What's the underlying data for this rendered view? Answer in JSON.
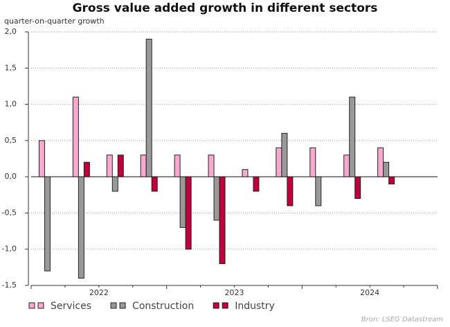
{
  "chart_data": {
    "type": "bar",
    "title": "Gross value added growth in different sectors",
    "y_label": "quarter-on-quarter growth",
    "source": "Bron: LSEG Datastream",
    "categories": [
      null,
      null,
      null,
      null,
      null,
      null,
      null,
      null,
      null,
      null,
      null
    ],
    "year_labels": [
      "2022",
      "2023",
      "2024"
    ],
    "series": [
      {
        "name": "Services",
        "color": "#f9a8cf",
        "values": [
          0.5,
          1.1,
          0.3,
          0.3,
          0.3,
          0.3,
          0.1,
          0.4,
          0.4,
          0.3,
          0.4
        ]
      },
      {
        "name": "Construction",
        "color": "#999999",
        "values": [
          -1.3,
          -1.4,
          -0.2,
          1.9,
          -0.7,
          -0.6,
          0.0,
          0.6,
          -0.4,
          1.1,
          0.2
        ]
      },
      {
        "name": "Industry",
        "color": "#c0003c",
        "values": [
          0.0,
          0.2,
          0.3,
          -0.2,
          -1.0,
          -1.2,
          -0.2,
          -0.4,
          0.0,
          -0.3,
          -0.1
        ]
      }
    ],
    "ylim": [
      -1.5,
      2.0
    ],
    "yticks": [
      {
        "value": -1.5,
        "label": "-1,5"
      },
      {
        "value": -1.0,
        "label": "-1,0"
      },
      {
        "value": -0.5,
        "label": "-0,5"
      },
      {
        "value": 0.0,
        "label": "0,0"
      },
      {
        "value": 0.5,
        "label": "0,5"
      },
      {
        "value": 1.0,
        "label": "1,0"
      },
      {
        "value": 1.5,
        "label": "1,5"
      },
      {
        "value": 2.0,
        "label": "2,0"
      }
    ],
    "grid": true
  }
}
